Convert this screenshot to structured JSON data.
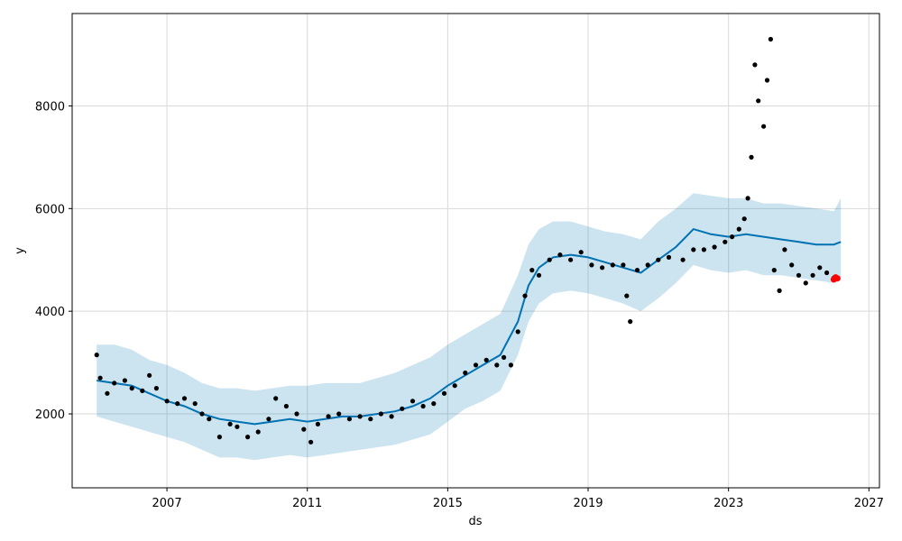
{
  "chart_data": {
    "type": "line",
    "xlabel": "ds",
    "ylabel": "y",
    "xlim": [
      2004.3,
      2027.3
    ],
    "ylim": [
      560,
      9800
    ],
    "x_ticks": [
      2007,
      2011,
      2015,
      2019,
      2023,
      2027
    ],
    "y_ticks": [
      2000,
      4000,
      6000,
      8000
    ],
    "grid": true,
    "colors": {
      "forecast_line": "#0072B2",
      "uncertainty_band": "#0072B2",
      "observed_points": "#000000",
      "highlight_points": "#ff0000"
    },
    "series": [
      {
        "kind": "forecast",
        "x": [
          2005.0,
          2005.5,
          2006.0,
          2006.5,
          2007.0,
          2007.5,
          2008.0,
          2008.5,
          2009.0,
          2009.5,
          2010.0,
          2010.5,
          2011.0,
          2011.5,
          2012.0,
          2012.5,
          2013.0,
          2013.5,
          2014.0,
          2014.5,
          2015.0,
          2015.5,
          2016.0,
          2016.5,
          2017.0,
          2017.3,
          2017.6,
          2018.0,
          2018.5,
          2019.0,
          2019.5,
          2020.0,
          2020.5,
          2021.0,
          2021.5,
          2022.0,
          2022.5,
          2023.0,
          2023.5,
          2024.0,
          2024.5,
          2025.0,
          2025.5,
          2026.0,
          2026.2
        ],
        "y": [
          2650,
          2600,
          2550,
          2400,
          2250,
          2150,
          2000,
          1900,
          1850,
          1800,
          1850,
          1900,
          1850,
          1900,
          1950,
          1950,
          2000,
          2050,
          2150,
          2300,
          2550,
          2750,
          2950,
          3150,
          3800,
          4500,
          4850,
          5050,
          5100,
          5050,
          4950,
          4850,
          4750,
          5000,
          5250,
          5600,
          5500,
          5450,
          5500,
          5450,
          5400,
          5350,
          5300,
          5300,
          5350
        ]
      },
      {
        "kind": "uncertainty_upper",
        "x": [
          2005.0,
          2005.5,
          2006.0,
          2006.5,
          2007.0,
          2007.5,
          2008.0,
          2008.5,
          2009.0,
          2009.5,
          2010.0,
          2010.5,
          2011.0,
          2011.5,
          2012.0,
          2012.5,
          2013.0,
          2013.5,
          2014.0,
          2014.5,
          2015.0,
          2015.5,
          2016.0,
          2016.5,
          2017.0,
          2017.3,
          2017.6,
          2018.0,
          2018.5,
          2019.0,
          2019.5,
          2020.0,
          2020.5,
          2021.0,
          2021.5,
          2022.0,
          2022.5,
          2023.0,
          2023.5,
          2024.0,
          2024.5,
          2025.0,
          2025.5,
          2026.0,
          2026.2
        ],
        "y": [
          3350,
          3350,
          3250,
          3050,
          2950,
          2800,
          2600,
          2500,
          2500,
          2450,
          2500,
          2550,
          2550,
          2600,
          2600,
          2600,
          2700,
          2800,
          2950,
          3100,
          3350,
          3550,
          3750,
          3950,
          4700,
          5300,
          5600,
          5750,
          5750,
          5650,
          5550,
          5500,
          5400,
          5750,
          6000,
          6300,
          6250,
          6200,
          6200,
          6100,
          6100,
          6050,
          6000,
          5950,
          6200
        ]
      },
      {
        "kind": "uncertainty_lower",
        "x": [
          2005.0,
          2005.5,
          2006.0,
          2006.5,
          2007.0,
          2007.5,
          2008.0,
          2008.5,
          2009.0,
          2009.5,
          2010.0,
          2010.5,
          2011.0,
          2011.5,
          2012.0,
          2012.5,
          2013.0,
          2013.5,
          2014.0,
          2014.5,
          2015.0,
          2015.5,
          2016.0,
          2016.5,
          2017.0,
          2017.3,
          2017.6,
          2018.0,
          2018.5,
          2019.0,
          2019.5,
          2020.0,
          2020.5,
          2021.0,
          2021.5,
          2022.0,
          2022.5,
          2023.0,
          2023.5,
          2024.0,
          2024.5,
          2025.0,
          2025.5,
          2026.0,
          2026.2
        ],
        "y": [
          1950,
          1850,
          1750,
          1650,
          1550,
          1450,
          1300,
          1150,
          1150,
          1100,
          1150,
          1200,
          1150,
          1200,
          1250,
          1300,
          1350,
          1400,
          1500,
          1600,
          1850,
          2100,
          2250,
          2450,
          3150,
          3800,
          4150,
          4350,
          4400,
          4350,
          4250,
          4150,
          4000,
          4250,
          4550,
          4900,
          4800,
          4750,
          4800,
          4700,
          4700,
          4650,
          4600,
          4550,
          4600
        ]
      },
      {
        "kind": "observed",
        "x": [
          2005.0,
          2005.1,
          2005.3,
          2005.5,
          2005.8,
          2006.0,
          2006.3,
          2006.5,
          2006.7,
          2007.0,
          2007.3,
          2007.5,
          2007.8,
          2008.0,
          2008.2,
          2008.5,
          2008.8,
          2009.0,
          2009.3,
          2009.6,
          2009.9,
          2010.1,
          2010.4,
          2010.7,
          2010.9,
          2011.1,
          2011.3,
          2011.6,
          2011.9,
          2012.2,
          2012.5,
          2012.8,
          2013.1,
          2013.4,
          2013.7,
          2014.0,
          2014.3,
          2014.6,
          2014.9,
          2015.2,
          2015.5,
          2015.8,
          2016.1,
          2016.4,
          2016.6,
          2016.8,
          2017.0,
          2017.2,
          2017.4,
          2017.6,
          2017.9,
          2018.2,
          2018.5,
          2018.8,
          2019.1,
          2019.4,
          2019.7,
          2020.0,
          2020.1,
          2020.2,
          2020.4,
          2020.7,
          2021.0,
          2021.3,
          2021.7,
          2022.0,
          2022.3,
          2022.6,
          2022.9,
          2023.1,
          2023.3,
          2023.45,
          2023.55,
          2023.65,
          2023.75,
          2023.85,
          2024.0,
          2024.1,
          2024.2,
          2024.3,
          2024.45,
          2024.6,
          2024.8,
          2025.0,
          2025.2,
          2025.4,
          2025.6,
          2025.8,
          2026.0
        ],
        "y": [
          3150,
          2700,
          2400,
          2600,
          2650,
          2500,
          2450,
          2750,
          2500,
          2250,
          2200,
          2300,
          2200,
          2000,
          1900,
          1550,
          1800,
          1750,
          1550,
          1650,
          1900,
          2300,
          2150,
          2000,
          1700,
          1450,
          1800,
          1950,
          2000,
          1900,
          1950,
          1900,
          2000,
          1950,
          2100,
          2250,
          2150,
          2200,
          2400,
          2550,
          2800,
          2950,
          3050,
          2950,
          3100,
          2950,
          3600,
          4300,
          4800,
          4700,
          5000,
          5100,
          5000,
          5150,
          4900,
          4850,
          4900,
          4900,
          4300,
          3800,
          4800,
          4900,
          5000,
          5050,
          5000,
          5200,
          5200,
          5250,
          5350,
          5450,
          5600,
          5800,
          6200,
          7000,
          8800,
          8100,
          7600,
          8500,
          9300,
          4800,
          4400,
          5200,
          4900,
          4700,
          4550,
          4700,
          4850,
          4750,
          4650
        ]
      },
      {
        "kind": "forecast_points",
        "x": [
          2026.0,
          2026.05,
          2026.1
        ],
        "y": [
          4620,
          4660,
          4640
        ]
      }
    ]
  }
}
